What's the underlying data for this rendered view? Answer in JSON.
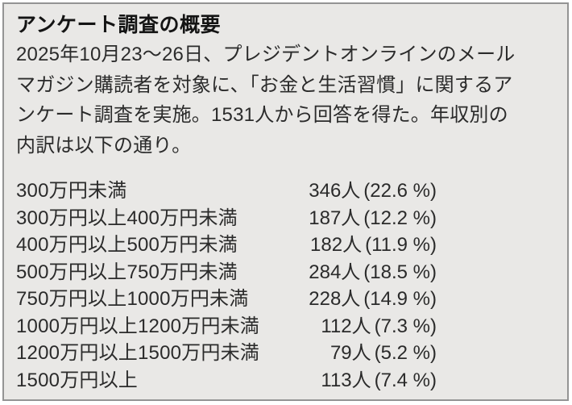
{
  "panel": {
    "title": "アンケート調査の概要",
    "paragraph_lines": [
      "2025年10月23〜26日、プレジデントオンラインのメール",
      "マガジン購読者を対象に、「お金と生活習慣」に関するア",
      "ンケート調査を実施。1531人から回答を得た。年収別の",
      "内訳は以下の通り。"
    ],
    "survey": {
      "period": "2025年10月23〜26日",
      "audience": "プレジデントオンラインのメールマガジン購読者",
      "topic": "お金と生活習慣",
      "respondents_total": 1531
    },
    "breakdown": [
      {
        "label": "300万円未満",
        "count": "346人",
        "percent": "(22.6 %)"
      },
      {
        "label": "300万円以上400万円未満",
        "count": "187人",
        "percent": "(12.2 %)"
      },
      {
        "label": "400万円以上500万円未満",
        "count": "182人",
        "percent": "(11.9 %)"
      },
      {
        "label": "500万円以上750万円未満",
        "count": "284人",
        "percent": "(18.5 %)"
      },
      {
        "label": "750万円以上1000万円未満",
        "count": "228人",
        "percent": "(14.9 %)"
      },
      {
        "label": "1000万円以上1200万円未満",
        "count": "112人",
        "percent": "(7.3 %)"
      },
      {
        "label": "1200万円以上1500万円未満",
        "count": "79人",
        "percent": "(5.2 %)"
      },
      {
        "label": "1500万円以上",
        "count": "113人",
        "percent": "(7.4 %)"
      }
    ],
    "colors": {
      "page_background": "#ffffff",
      "panel_background": "#e9e8e6",
      "panel_border": "#949494",
      "title_text": "#141414",
      "body_text": "#2b2b2b"
    }
  }
}
